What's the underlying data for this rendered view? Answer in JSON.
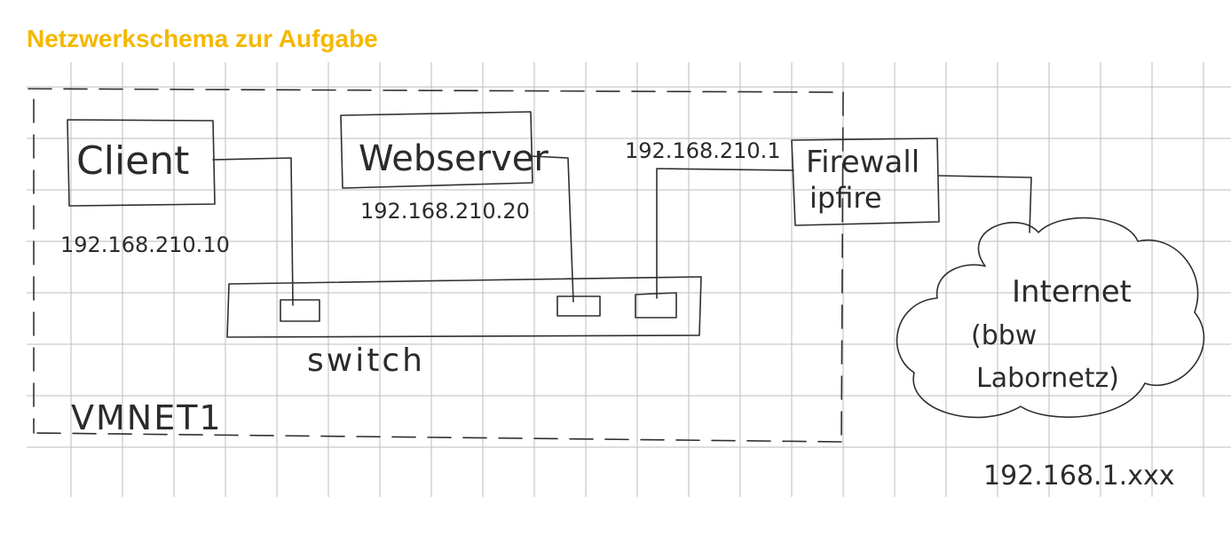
{
  "title": "Netzwerkschema zur Aufgabe",
  "colors": {
    "title": "#f5b800",
    "grid": "#bdbdbd",
    "ink": "#2f2f2f"
  },
  "network": {
    "name": "VMNET1"
  },
  "nodes": {
    "client": {
      "label": "Client",
      "ip": "192.168.210.10"
    },
    "webserver": {
      "label": "Webserver",
      "ip": "192.168.210.20"
    },
    "firewall": {
      "label_line1": "Firewall",
      "label_line2": "ipfire",
      "ip": "192.168.210.1"
    },
    "switch": {
      "label": "switch"
    },
    "internet": {
      "label_line1": "Internet",
      "label_line2": "(bbw",
      "label_line3": "Labornetz)",
      "ip": "192.168.1.xxx"
    }
  }
}
